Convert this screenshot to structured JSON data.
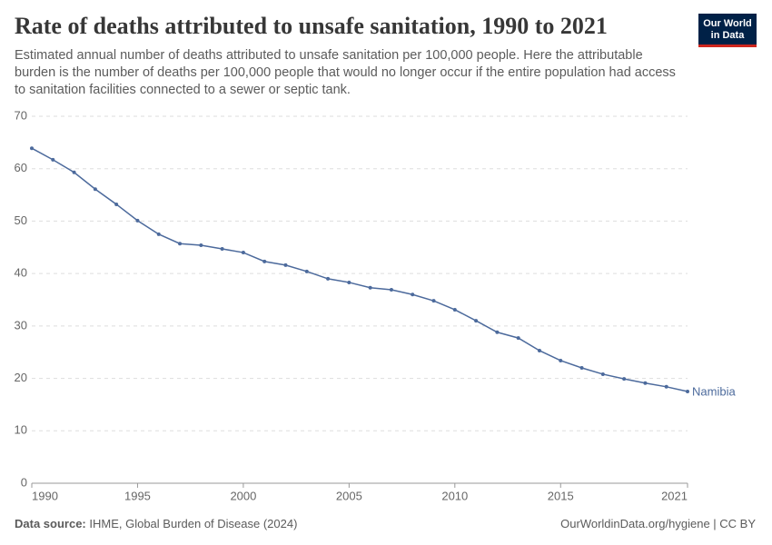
{
  "chart_data": {
    "type": "line",
    "title": "Rate of deaths attributed to unsafe sanitation, 1990 to 2021",
    "subtitle": "Estimated annual number of deaths attributed to unsafe sanitation per 100,000 people. Here the attributable burden is the number of deaths per 100,000 people that would no longer occur if the entire population had access to sanitation facilities connected to a sewer or septic tank.",
    "x": [
      1990,
      1991,
      1992,
      1993,
      1994,
      1995,
      1996,
      1997,
      1998,
      1999,
      2000,
      2001,
      2002,
      2003,
      2004,
      2005,
      2006,
      2007,
      2008,
      2009,
      2010,
      2011,
      2012,
      2013,
      2014,
      2015,
      2016,
      2017,
      2018,
      2019,
      2020,
      2021
    ],
    "series": [
      {
        "name": "Namibia",
        "color": "#4c6a9c",
        "values": [
          63.9,
          61.7,
          59.3,
          56.1,
          53.2,
          50.1,
          47.5,
          45.7,
          45.4,
          44.7,
          44.0,
          42.3,
          41.6,
          40.4,
          39.0,
          38.3,
          37.3,
          36.9,
          36.0,
          34.8,
          33.1,
          31.0,
          28.8,
          27.7,
          25.3,
          23.4,
          22.0,
          20.8,
          19.9,
          19.1,
          18.4,
          17.5
        ]
      }
    ],
    "xlim": [
      1990,
      2021
    ],
    "xticks": [
      1990,
      1995,
      2000,
      2005,
      2010,
      2015,
      2021
    ],
    "ylim": [
      0,
      70
    ],
    "yticks": [
      0,
      10,
      20,
      30,
      40,
      50,
      60,
      70
    ],
    "grid": true,
    "source_label": "Data source:",
    "source": "IHME, Global Burden of Disease (2024)",
    "url": "OurWorldinData.org/hygiene | CC BY",
    "logo": "Our World in Data"
  }
}
